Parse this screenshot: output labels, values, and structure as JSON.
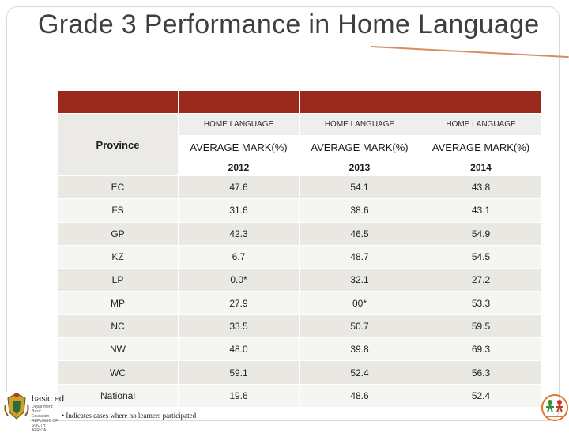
{
  "slide": {
    "title": "Grade 3 Performance in Home Language"
  },
  "table": {
    "province_header": "Province",
    "language_headers": [
      "HOME LANGUAGE",
      "HOME LANGUAGE",
      "HOME LANGUAGE"
    ],
    "measure_headers": [
      "AVERAGE MARK(%)",
      "AVERAGE MARK(%)",
      "AVERAGE MARK(%)"
    ],
    "years": [
      "2012",
      "2013",
      "2014"
    ],
    "rows": [
      {
        "province": "EC",
        "y2012": "47.6",
        "y2013": "54.1",
        "y2014": "43.8"
      },
      {
        "province": "FS",
        "y2012": "31.6",
        "y2013": "38.6",
        "y2014": "43.1"
      },
      {
        "province": "GP",
        "y2012": "42.3",
        "y2013": "46.5",
        "y2014": "54.9"
      },
      {
        "province": "KZ",
        "y2012": "6.7",
        "y2013": "48.7",
        "y2014": "54.5"
      },
      {
        "province": "LP",
        "y2012": "0.0*",
        "y2013": "32.1",
        "y2014": "27.2"
      },
      {
        "province": "MP",
        "y2012": "27.9",
        "y2013": "00*",
        "y2014": "53.3"
      },
      {
        "province": "NC",
        "y2012": "33.5",
        "y2013": "50.7",
        "y2014": "59.5"
      },
      {
        "province": "NW",
        "y2012": "48.0",
        "y2013": "39.8",
        "y2014": "69.3"
      },
      {
        "province": "WC",
        "y2012": "59.1",
        "y2013": "52.4",
        "y2014": "56.3"
      },
      {
        "province": "National",
        "y2012": "19.6",
        "y2013": "48.6",
        "y2014": "52.4"
      }
    ]
  },
  "footnote": "• Indicates cases where no learners participated",
  "logo": {
    "text": "basic ed",
    "subtext": "Department: Basic Education REPUBLIC OF SOUTH AFRICA"
  },
  "colors": {
    "header_red": "#9b2a1e",
    "row_light": "#e9e8e3",
    "row_lighter": "#f5f5f2"
  }
}
